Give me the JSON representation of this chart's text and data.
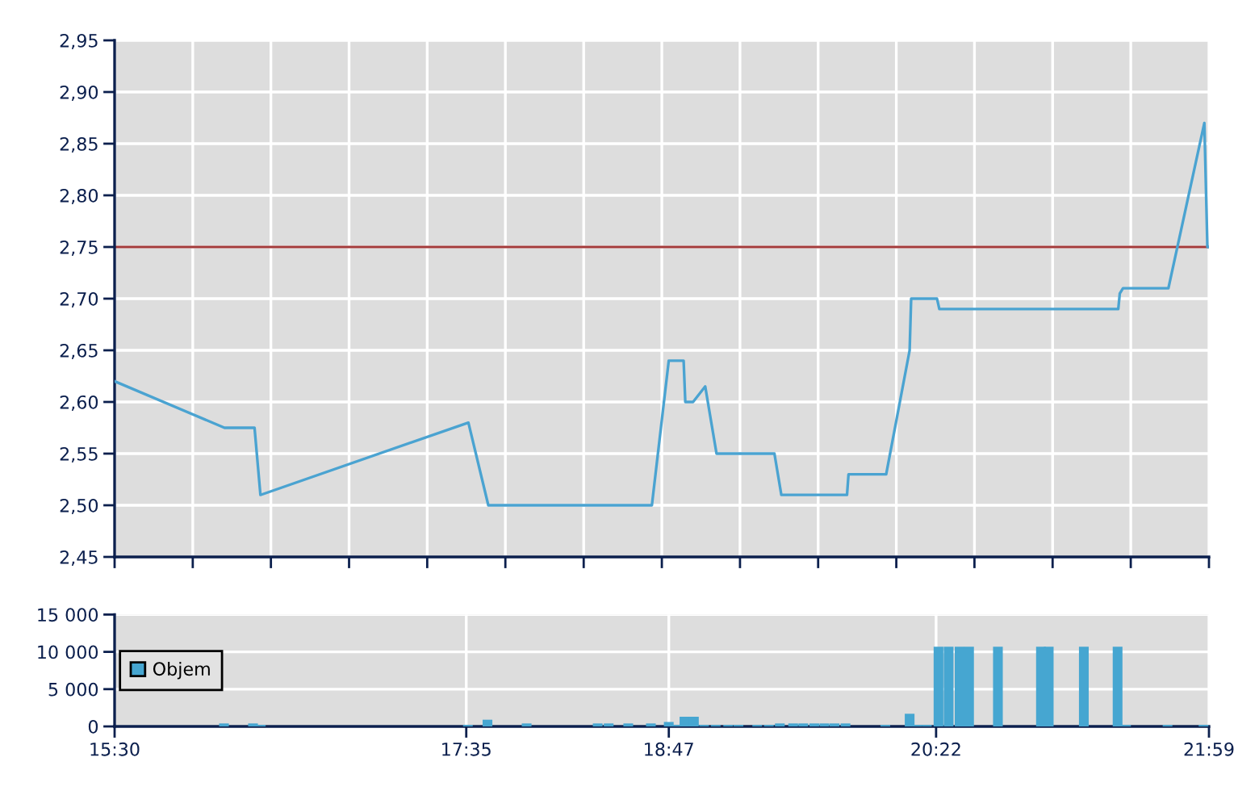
{
  "chart_data": [
    {
      "type": "line",
      "xlim": [
        15.5,
        21.9833
      ],
      "xticks": [
        {
          "value": 15.5,
          "label": null
        },
        {
          "value": 15.963,
          "label": null
        },
        {
          "value": 16.426,
          "label": null
        },
        {
          "value": 16.889,
          "label": null
        },
        {
          "value": 17.352,
          "label": null
        },
        {
          "value": 17.815,
          "label": null
        },
        {
          "value": 18.279,
          "label": null
        },
        {
          "value": 18.742,
          "label": null
        },
        {
          "value": 19.205,
          "label": null
        },
        {
          "value": 19.668,
          "label": null
        },
        {
          "value": 20.131,
          "label": null
        },
        {
          "value": 20.594,
          "label": null
        },
        {
          "value": 21.057,
          "label": null
        },
        {
          "value": 21.52,
          "label": null
        },
        {
          "value": 21.9833,
          "label": null
        }
      ],
      "ylim": [
        2.45,
        2.95
      ],
      "yticks": [
        {
          "value": 2.45,
          "label": "2,45"
        },
        {
          "value": 2.5,
          "label": "2,50"
        },
        {
          "value": 2.55,
          "label": "2,55"
        },
        {
          "value": 2.6,
          "label": "2,60"
        },
        {
          "value": 2.65,
          "label": "2,65"
        },
        {
          "value": 2.7,
          "label": "2,70"
        },
        {
          "value": 2.75,
          "label": "2,75"
        },
        {
          "value": 2.8,
          "label": "2,80"
        },
        {
          "value": 2.85,
          "label": "2,85"
        },
        {
          "value": 2.9,
          "label": "2,90"
        },
        {
          "value": 2.95,
          "label": "2,95"
        }
      ],
      "grid": true,
      "tick_labels": "y",
      "ref_lines": [
        {
          "axis": "y",
          "value": 2.75,
          "color": "#a33a3a"
        }
      ],
      "series": [
        {
          "color": "#4aa3d1",
          "x": [
            15.5,
            16.151,
            16.329,
            16.364,
            17.596,
            17.714,
            18.683,
            18.783,
            18.871,
            18.881,
            18.927,
            18.999,
            19.066,
            19.409,
            19.45,
            19.839,
            19.848,
            20.071,
            20.21,
            20.219,
            20.372,
            20.386,
            21.446,
            21.455,
            21.474,
            21.743,
            21.956,
            21.974,
            21.9833
          ],
          "values": [
            2.62,
            2.575,
            2.575,
            2.51,
            2.58,
            2.5,
            2.5,
            2.64,
            2.64,
            2.6,
            2.6,
            2.615,
            2.55,
            2.55,
            2.51,
            2.51,
            2.53,
            2.53,
            2.65,
            2.7,
            2.7,
            2.69,
            2.69,
            2.705,
            2.71,
            2.71,
            2.87,
            2.75,
            2.75
          ]
        }
      ]
    },
    {
      "type": "bar",
      "xlim": [
        15.5,
        21.9833
      ],
      "xticks": [
        {
          "value": 15.5,
          "label": "15:30"
        },
        {
          "value": 17.5833,
          "label": "17:35"
        },
        {
          "value": 18.7833,
          "label": "18:47"
        },
        {
          "value": 20.3667,
          "label": "20:22"
        },
        {
          "value": 21.9833,
          "label": "21:59"
        }
      ],
      "ylim": [
        0,
        15000
      ],
      "yticks": [
        0,
        {
          "value": 5000,
          "label": "5 000"
        },
        {
          "value": 10000,
          "label": "10 000"
        },
        {
          "value": 15000,
          "label": "15 000"
        }
      ],
      "grid": true,
      "legend": "left",
      "series": [
        {
          "name": "Objem",
          "color": "#46a6d1",
          "x": [
            16.148,
            16.32,
            16.366,
            17.593,
            17.709,
            17.941,
            18.362,
            18.427,
            18.543,
            18.677,
            18.783,
            18.83,
            18.876,
            18.932,
            18.992,
            19.061,
            19.135,
            19.196,
            19.307,
            19.376,
            19.441,
            19.52,
            19.58,
            19.645,
            19.705,
            19.765,
            19.83,
            20.066,
            20.21,
            20.256,
            20.312,
            20.381,
            20.441,
            20.506,
            20.562,
            20.733,
            20.988,
            21.034,
            21.242,
            21.442,
            21.492,
            21.738,
            21.951
          ],
          "values": [
            400,
            400,
            200,
            200,
            900,
            400,
            400,
            400,
            400,
            400,
            600,
            200,
            1300,
            1300,
            200,
            200,
            200,
            200,
            200,
            200,
            400,
            400,
            400,
            400,
            400,
            400,
            400,
            200,
            1700,
            200,
            200,
            10700,
            10700,
            10700,
            10700,
            10700,
            10700,
            10700,
            10700,
            10700,
            200,
            200,
            200
          ]
        }
      ]
    }
  ]
}
